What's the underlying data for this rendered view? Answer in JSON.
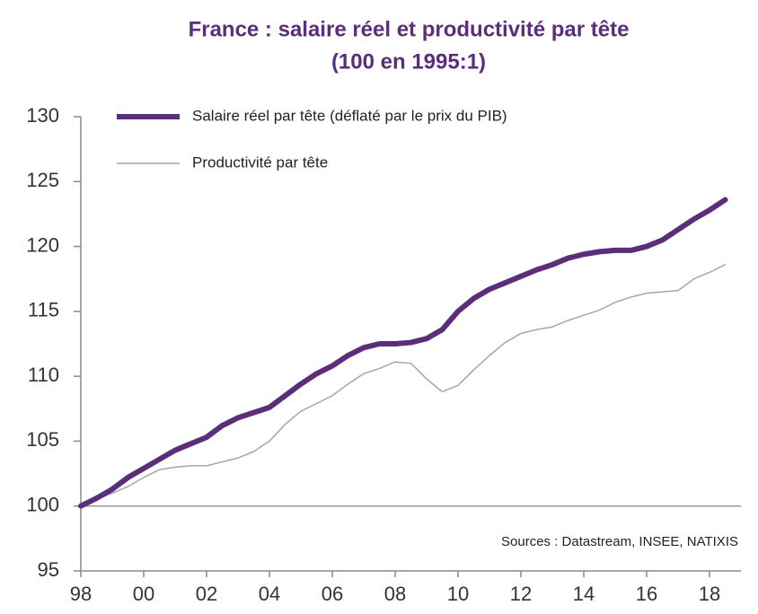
{
  "chart_data": {
    "type": "line",
    "title": "France : salaire réel et productivité par tête",
    "subtitle": "(100 en 1995:1)",
    "annotation": "Sources  : Datastream,  INSEE, NATIXIS",
    "x": [
      1998,
      1998.5,
      1999,
      1999.5,
      2000,
      2000.5,
      2001,
      2001.5,
      2002,
      2002.5,
      2003,
      2003.5,
      2004,
      2004.5,
      2005,
      2005.5,
      2006,
      2006.5,
      2007,
      2007.5,
      2008,
      2008.5,
      2009,
      2009.5,
      2010,
      2010.5,
      2011,
      2011.5,
      2012,
      2012.5,
      2013,
      2013.5,
      2014,
      2014.5,
      2015,
      2015.5,
      2016,
      2016.5,
      2017,
      2017.5,
      2018,
      2018.5
    ],
    "series": [
      {
        "name": "Salaire réel par tête (déflaté par le prix du PIB)",
        "color": "#5b2d7a",
        "width": 6,
        "values": [
          100,
          100.6,
          101.3,
          102.2,
          102.9,
          103.6,
          104.3,
          104.8,
          105.3,
          106.2,
          106.8,
          107.2,
          107.6,
          108.5,
          109.4,
          110.2,
          110.8,
          111.6,
          112.2,
          112.5,
          112.5,
          112.6,
          112.9,
          113.6,
          115.0,
          116.0,
          116.7,
          117.2,
          117.7,
          118.2,
          118.6,
          119.1,
          119.4,
          119.6,
          119.7,
          119.7,
          120.0,
          120.5,
          121.3,
          122.1,
          122.8,
          123.6
        ]
      },
      {
        "name": "Productivité par tête",
        "color": "#a6a6a6",
        "width": 1.5,
        "values": [
          100,
          100.5,
          101.0,
          101.5,
          102.2,
          102.8,
          103.0,
          103.1,
          103.1,
          103.4,
          103.7,
          104.2,
          105.0,
          106.3,
          107.3,
          107.9,
          108.5,
          109.4,
          110.2,
          110.6,
          111.1,
          111.0,
          109.8,
          108.8,
          109.3,
          110.5,
          111.6,
          112.6,
          113.3,
          113.6,
          113.8,
          114.3,
          114.7,
          115.1,
          115.7,
          116.1,
          116.4,
          116.5,
          116.6,
          117.5,
          118.0,
          118.6
        ]
      }
    ],
    "baseline": 100,
    "xlim": [
      1998,
      2019
    ],
    "xticks": [
      {
        "value": 1998,
        "label": "98"
      },
      {
        "value": 2000,
        "label": "00"
      },
      {
        "value": 2002,
        "label": "02"
      },
      {
        "value": 2004,
        "label": "04"
      },
      {
        "value": 2006,
        "label": "06"
      },
      {
        "value": 2008,
        "label": "08"
      },
      {
        "value": 2010,
        "label": "10"
      },
      {
        "value": 2012,
        "label": "12"
      },
      {
        "value": 2014,
        "label": "14"
      },
      {
        "value": 2016,
        "label": "16"
      },
      {
        "value": 2018,
        "label": "18"
      }
    ],
    "ylim": [
      95,
      130
    ],
    "yticks": [
      95,
      100,
      105,
      110,
      115,
      120,
      125,
      130
    ]
  }
}
